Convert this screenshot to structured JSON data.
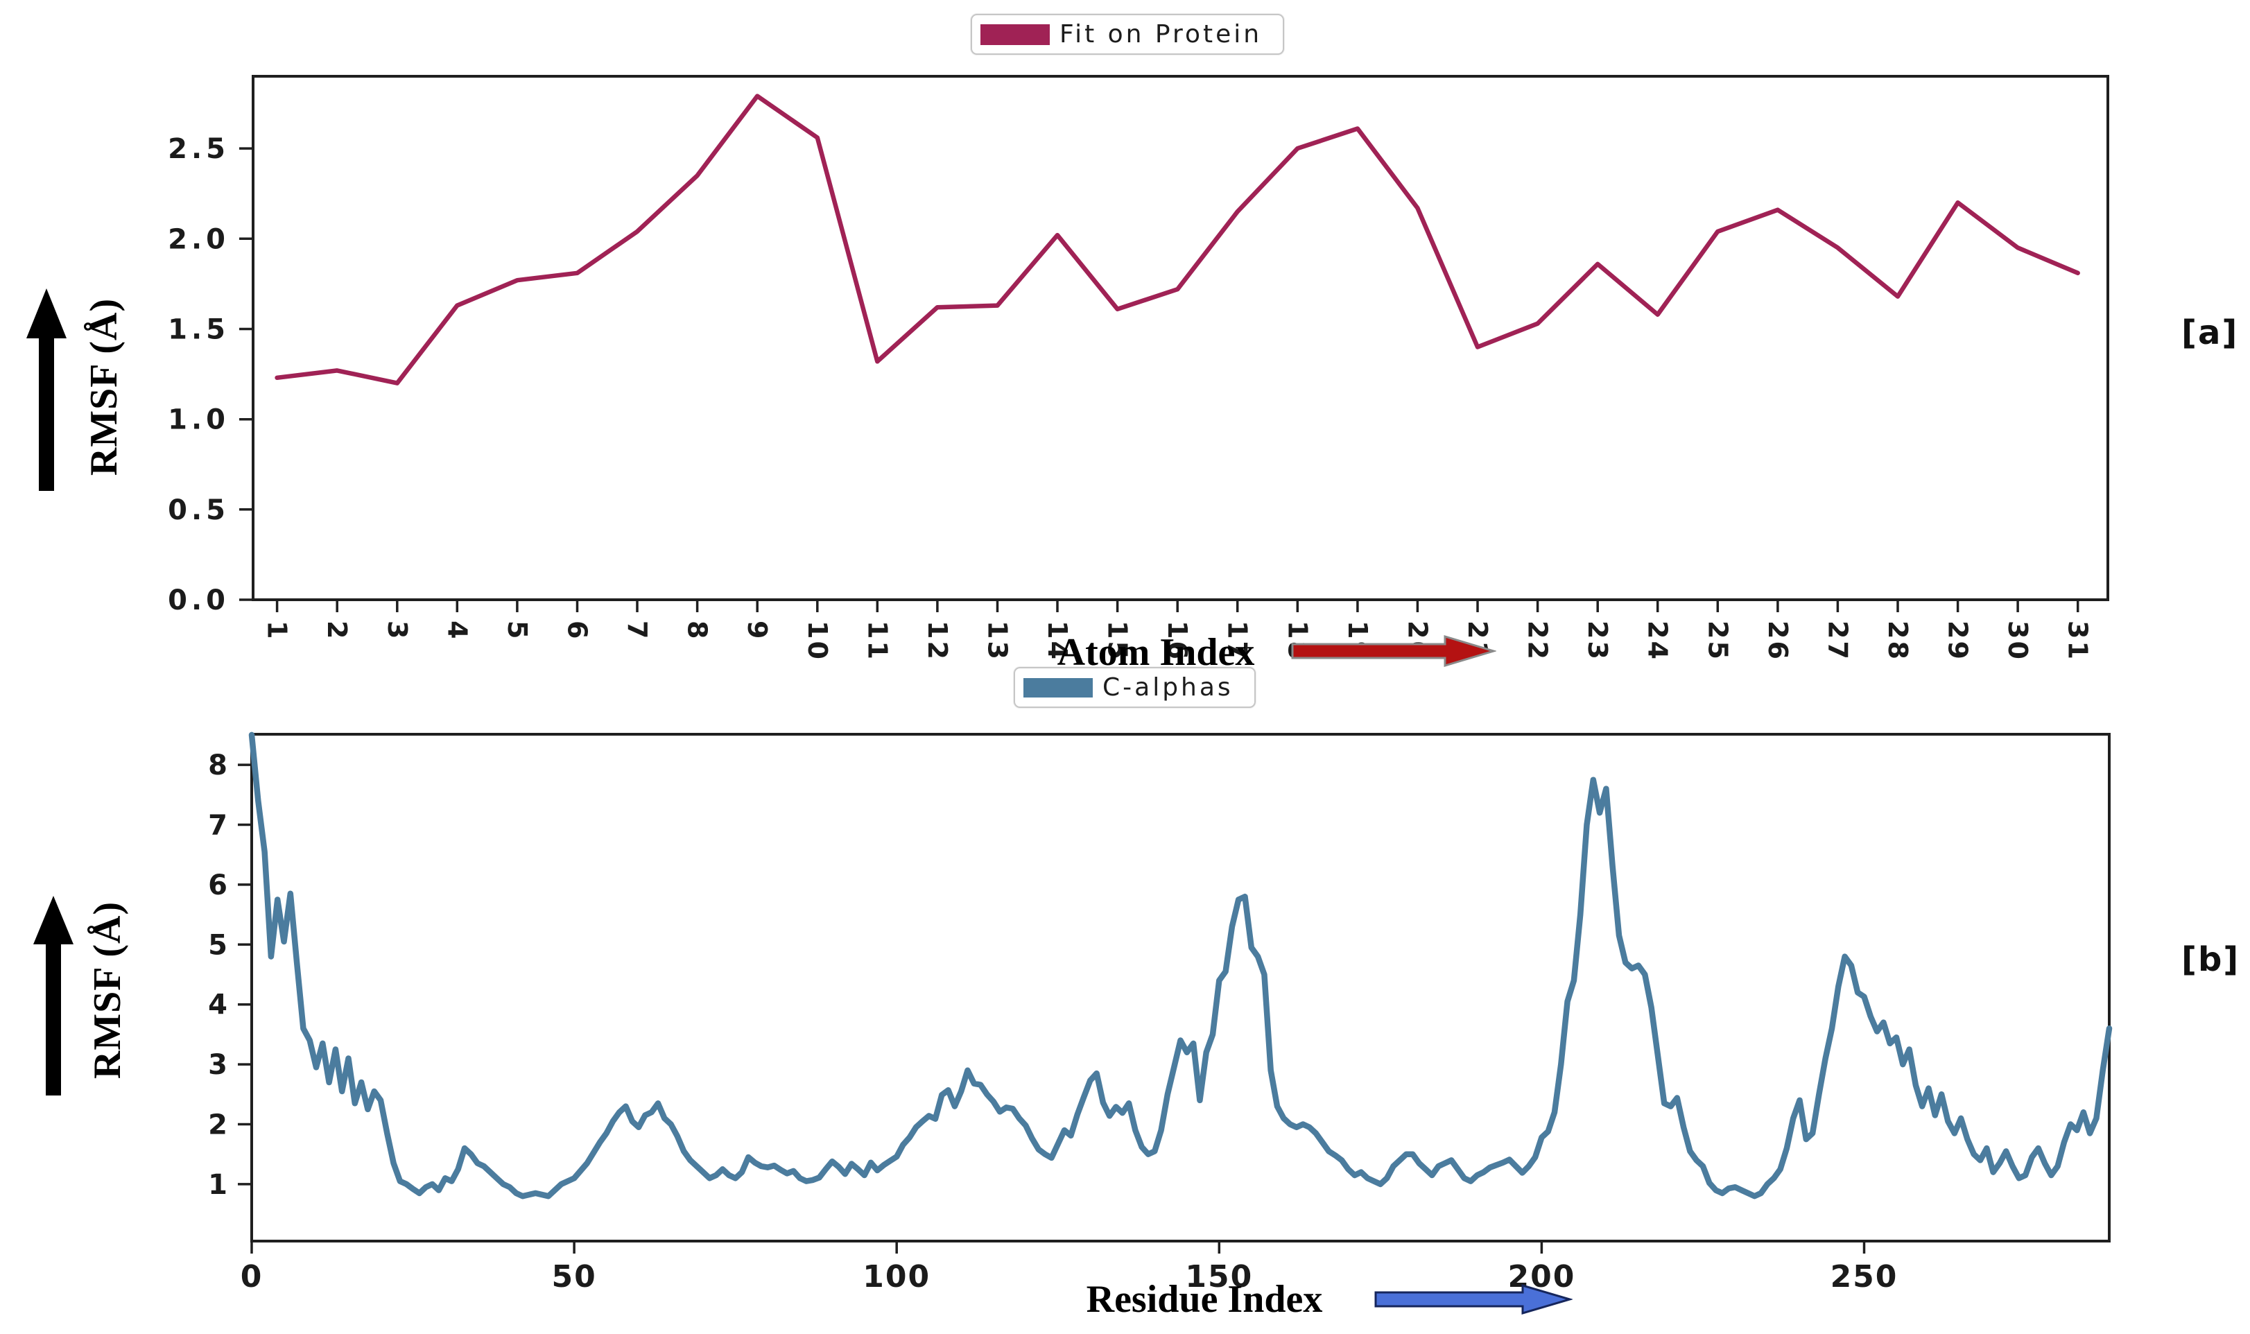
{
  "figure": {
    "background": "#ffffff",
    "axis_color": "#1f1f1f",
    "tick_label_color": "#1b1b1b"
  },
  "chart_data": [
    {
      "type": "line",
      "title": "",
      "panel_tag": "[a]",
      "legend": "Fit on Protein",
      "legend_position": "top-center",
      "xlabel": "Atom Index",
      "ylabel": "RMSF (Å)",
      "line_color": "#a02255",
      "xlabel_arrow_color": "#b41212",
      "xlabel_arrow_edge": "#8a8a8a",
      "ylabel_arrow_color": "#000000",
      "grid": false,
      "xlim": [
        0.6,
        31.5
      ],
      "ylim": [
        0.0,
        2.9
      ],
      "x_ticks": [
        1,
        2,
        3,
        4,
        5,
        6,
        7,
        8,
        9,
        10,
        11,
        12,
        13,
        14,
        15,
        16,
        17,
        18,
        19,
        20,
        21,
        22,
        23,
        24,
        25,
        26,
        27,
        28,
        29,
        30,
        31
      ],
      "y_ticks": [
        0.0,
        0.5,
        1.0,
        1.5,
        2.0,
        2.5
      ],
      "y_tick_labels": [
        "0.0",
        "0.5",
        "1.0",
        "1.5",
        "2.0",
        "2.5"
      ],
      "points": [
        [
          1,
          1.23
        ],
        [
          2,
          1.27
        ],
        [
          3,
          1.2
        ],
        [
          4,
          1.63
        ],
        [
          5,
          1.77
        ],
        [
          6,
          1.81
        ],
        [
          7,
          2.04
        ],
        [
          8,
          2.35
        ],
        [
          9,
          2.79
        ],
        [
          10,
          2.56
        ],
        [
          11,
          1.32
        ],
        [
          12,
          1.62
        ],
        [
          13,
          1.63
        ],
        [
          14,
          2.02
        ],
        [
          15,
          1.61
        ],
        [
          16,
          1.72
        ],
        [
          17,
          2.15
        ],
        [
          18,
          2.5
        ],
        [
          19,
          2.61
        ],
        [
          20,
          2.17
        ],
        [
          21,
          1.4
        ],
        [
          22,
          1.53
        ],
        [
          23,
          1.86
        ],
        [
          24,
          1.58
        ],
        [
          25,
          2.04
        ],
        [
          26,
          2.16
        ],
        [
          27,
          1.95
        ],
        [
          28,
          1.68
        ],
        [
          29,
          2.2
        ],
        [
          30,
          1.95
        ],
        [
          31,
          1.81
        ]
      ]
    },
    {
      "type": "line",
      "title": "",
      "panel_tag": "[b]",
      "legend": "C-alphas",
      "legend_position": "top-center",
      "xlabel": "Residue Index",
      "ylabel": "RMSF (Å)",
      "line_color": "#4b7c9e",
      "xlabel_arrow_color": "#4a70d8",
      "xlabel_arrow_edge": "#16265c",
      "ylabel_arrow_color": "#000000",
      "grid": false,
      "xlim": [
        0,
        288
      ],
      "ylim": [
        0.05,
        8.51
      ],
      "x_ticks": [
        0,
        50,
        100,
        150,
        200,
        250
      ],
      "y_ticks": [
        1,
        2,
        3,
        4,
        5,
        6,
        7,
        8
      ],
      "y_tick_labels": [
        "1",
        "2",
        "3",
        "4",
        "5",
        "6",
        "7",
        "8"
      ],
      "points": [
        [
          0,
          8.5
        ],
        [
          1,
          7.4
        ],
        [
          2,
          6.55
        ],
        [
          3,
          4.8
        ],
        [
          4,
          5.75
        ],
        [
          5,
          5.05
        ],
        [
          6,
          5.85
        ],
        [
          7,
          4.7
        ],
        [
          8,
          3.6
        ],
        [
          9,
          3.4
        ],
        [
          10,
          2.95
        ],
        [
          11,
          3.35
        ],
        [
          12,
          2.7
        ],
        [
          13,
          3.25
        ],
        [
          14,
          2.55
        ],
        [
          15,
          3.1
        ],
        [
          16,
          2.35
        ],
        [
          17,
          2.7
        ],
        [
          18,
          2.25
        ],
        [
          19,
          2.55
        ],
        [
          20,
          2.4
        ],
        [
          21,
          1.85
        ],
        [
          22,
          1.35
        ],
        [
          23,
          1.05
        ],
        [
          24,
          1.0
        ],
        [
          25,
          0.92
        ],
        [
          26,
          0.85
        ],
        [
          27,
          0.95
        ],
        [
          28,
          1.0
        ],
        [
          29,
          0.9
        ],
        [
          30,
          1.1
        ],
        [
          31,
          1.05
        ],
        [
          32,
          1.25
        ],
        [
          33,
          1.6
        ],
        [
          34,
          1.5
        ],
        [
          35,
          1.35
        ],
        [
          36,
          1.3
        ],
        [
          37,
          1.2
        ],
        [
          38,
          1.1
        ],
        [
          39,
          1.0
        ],
        [
          40,
          0.95
        ],
        [
          41,
          0.85
        ],
        [
          42,
          0.8
        ],
        [
          44,
          0.85
        ],
        [
          46,
          0.8
        ],
        [
          48,
          1.0
        ],
        [
          50,
          1.1
        ],
        [
          52,
          1.35
        ],
        [
          54,
          1.7
        ],
        [
          55,
          1.85
        ],
        [
          56,
          2.05
        ],
        [
          57,
          2.2
        ],
        [
          58,
          2.3
        ],
        [
          59,
          2.05
        ],
        [
          60,
          1.95
        ],
        [
          61,
          2.15
        ],
        [
          62,
          2.2
        ],
        [
          63,
          2.35
        ],
        [
          64,
          2.1
        ],
        [
          65,
          2.0
        ],
        [
          66,
          1.8
        ],
        [
          67,
          1.55
        ],
        [
          68,
          1.4
        ],
        [
          69,
          1.3
        ],
        [
          70,
          1.2
        ],
        [
          71,
          1.1
        ],
        [
          72,
          1.15
        ],
        [
          73,
          1.25
        ],
        [
          74,
          1.15
        ],
        [
          75,
          1.1
        ],
        [
          76,
          1.2
        ],
        [
          77,
          1.45
        ],
        [
          78,
          1.36
        ],
        [
          79,
          1.3
        ],
        [
          80,
          1.28
        ],
        [
          81,
          1.31
        ],
        [
          82,
          1.24
        ],
        [
          83,
          1.18
        ],
        [
          84,
          1.22
        ],
        [
          85,
          1.1
        ],
        [
          86,
          1.05
        ],
        [
          87,
          1.07
        ],
        [
          88,
          1.11
        ],
        [
          89,
          1.25
        ],
        [
          90,
          1.38
        ],
        [
          91,
          1.29
        ],
        [
          92,
          1.17
        ],
        [
          93,
          1.34
        ],
        [
          94,
          1.25
        ],
        [
          95,
          1.15
        ],
        [
          96,
          1.36
        ],
        [
          97,
          1.23
        ],
        [
          98,
          1.32
        ],
        [
          99,
          1.39
        ],
        [
          100,
          1.46
        ],
        [
          101,
          1.66
        ],
        [
          102,
          1.78
        ],
        [
          103,
          1.95
        ],
        [
          104,
          2.05
        ],
        [
          105,
          2.14
        ],
        [
          106,
          2.09
        ],
        [
          107,
          2.49
        ],
        [
          108,
          2.57
        ],
        [
          109,
          2.3
        ],
        [
          110,
          2.55
        ],
        [
          111,
          2.9
        ],
        [
          112,
          2.68
        ],
        [
          113,
          2.66
        ],
        [
          114,
          2.5
        ],
        [
          115,
          2.38
        ],
        [
          116,
          2.21
        ],
        [
          117,
          2.28
        ],
        [
          118,
          2.26
        ],
        [
          119,
          2.1
        ],
        [
          120,
          1.98
        ],
        [
          121,
          1.76
        ],
        [
          122,
          1.58
        ],
        [
          123,
          1.5
        ],
        [
          124,
          1.44
        ],
        [
          125,
          1.67
        ],
        [
          126,
          1.9
        ],
        [
          127,
          1.81
        ],
        [
          128,
          2.16
        ],
        [
          129,
          2.45
        ],
        [
          130,
          2.73
        ],
        [
          131,
          2.85
        ],
        [
          132,
          2.36
        ],
        [
          133,
          2.14
        ],
        [
          134,
          2.29
        ],
        [
          135,
          2.19
        ],
        [
          136,
          2.35
        ],
        [
          137,
          1.9
        ],
        [
          138,
          1.62
        ],
        [
          139,
          1.5
        ],
        [
          140,
          1.55
        ],
        [
          141,
          1.9
        ],
        [
          142,
          2.5
        ],
        [
          143,
          2.95
        ],
        [
          144,
          3.4
        ],
        [
          145,
          3.2
        ],
        [
          146,
          3.35
        ],
        [
          147,
          2.4
        ],
        [
          148,
          3.2
        ],
        [
          149,
          3.5
        ],
        [
          150,
          4.4
        ],
        [
          151,
          4.55
        ],
        [
          152,
          5.3
        ],
        [
          153,
          5.75
        ],
        [
          154,
          5.8
        ],
        [
          155,
          4.95
        ],
        [
          156,
          4.8
        ],
        [
          157,
          4.5
        ],
        [
          158,
          2.9
        ],
        [
          159,
          2.3
        ],
        [
          160,
          2.1
        ],
        [
          161,
          2.0
        ],
        [
          162,
          1.95
        ],
        [
          163,
          2.0
        ],
        [
          164,
          1.95
        ],
        [
          165,
          1.85
        ],
        [
          166,
          1.7
        ],
        [
          167,
          1.55
        ],
        [
          168,
          1.48
        ],
        [
          169,
          1.4
        ],
        [
          170,
          1.25
        ],
        [
          171,
          1.15
        ],
        [
          172,
          1.2
        ],
        [
          173,
          1.1
        ],
        [
          174,
          1.05
        ],
        [
          175,
          1.0
        ],
        [
          176,
          1.1
        ],
        [
          177,
          1.3
        ],
        [
          178,
          1.4
        ],
        [
          179,
          1.5
        ],
        [
          180,
          1.5
        ],
        [
          181,
          1.35
        ],
        [
          182,
          1.25
        ],
        [
          183,
          1.15
        ],
        [
          184,
          1.3
        ],
        [
          185,
          1.35
        ],
        [
          186,
          1.4
        ],
        [
          187,
          1.25
        ],
        [
          188,
          1.1
        ],
        [
          189,
          1.05
        ],
        [
          190,
          1.15
        ],
        [
          191,
          1.2
        ],
        [
          192,
          1.28
        ],
        [
          193,
          1.32
        ],
        [
          194,
          1.36
        ],
        [
          195,
          1.41
        ],
        [
          196,
          1.3
        ],
        [
          197,
          1.19
        ],
        [
          198,
          1.3
        ],
        [
          199,
          1.45
        ],
        [
          200,
          1.78
        ],
        [
          201,
          1.88
        ],
        [
          202,
          2.2
        ],
        [
          203,
          3.0
        ],
        [
          204,
          4.05
        ],
        [
          205,
          4.4
        ],
        [
          206,
          5.5
        ],
        [
          207,
          7.0
        ],
        [
          208,
          7.75
        ],
        [
          209,
          7.2
        ],
        [
          210,
          7.6
        ],
        [
          211,
          6.3
        ],
        [
          212,
          5.15
        ],
        [
          213,
          4.7
        ],
        [
          214,
          4.6
        ],
        [
          215,
          4.65
        ],
        [
          216,
          4.5
        ],
        [
          217,
          3.95
        ],
        [
          218,
          3.15
        ],
        [
          219,
          2.35
        ],
        [
          220,
          2.3
        ],
        [
          221,
          2.44
        ],
        [
          222,
          1.95
        ],
        [
          223,
          1.55
        ],
        [
          224,
          1.4
        ],
        [
          225,
          1.3
        ],
        [
          226,
          1.02
        ],
        [
          227,
          0.9
        ],
        [
          228,
          0.85
        ],
        [
          229,
          0.93
        ],
        [
          230,
          0.95
        ],
        [
          231,
          0.9
        ],
        [
          232,
          0.85
        ],
        [
          233,
          0.8
        ],
        [
          234,
          0.85
        ],
        [
          235,
          1.0
        ],
        [
          236,
          1.1
        ],
        [
          237,
          1.25
        ],
        [
          238,
          1.6
        ],
        [
          239,
          2.1
        ],
        [
          240,
          2.4
        ],
        [
          241,
          1.75
        ],
        [
          242,
          1.85
        ],
        [
          243,
          2.5
        ],
        [
          244,
          3.1
        ],
        [
          245,
          3.6
        ],
        [
          246,
          4.3
        ],
        [
          247,
          4.8
        ],
        [
          248,
          4.65
        ],
        [
          249,
          4.2
        ],
        [
          250,
          4.13
        ],
        [
          251,
          3.8
        ],
        [
          252,
          3.55
        ],
        [
          253,
          3.7
        ],
        [
          254,
          3.35
        ],
        [
          255,
          3.45
        ],
        [
          256,
          3.0
        ],
        [
          257,
          3.25
        ],
        [
          258,
          2.65
        ],
        [
          259,
          2.3
        ],
        [
          260,
          2.6
        ],
        [
          261,
          2.15
        ],
        [
          262,
          2.5
        ],
        [
          263,
          2.05
        ],
        [
          264,
          1.85
        ],
        [
          265,
          2.1
        ],
        [
          266,
          1.75
        ],
        [
          267,
          1.5
        ],
        [
          268,
          1.4
        ],
        [
          269,
          1.6
        ],
        [
          270,
          1.2
        ],
        [
          271,
          1.35
        ],
        [
          272,
          1.55
        ],
        [
          273,
          1.3
        ],
        [
          274,
          1.1
        ],
        [
          275,
          1.15
        ],
        [
          276,
          1.45
        ],
        [
          277,
          1.6
        ],
        [
          278,
          1.35
        ],
        [
          279,
          1.15
        ],
        [
          280,
          1.3
        ],
        [
          281,
          1.7
        ],
        [
          282,
          2.0
        ],
        [
          283,
          1.9
        ],
        [
          284,
          2.2
        ],
        [
          285,
          1.85
        ],
        [
          286,
          2.1
        ],
        [
          287,
          2.9
        ],
        [
          288,
          3.6
        ]
      ]
    }
  ]
}
